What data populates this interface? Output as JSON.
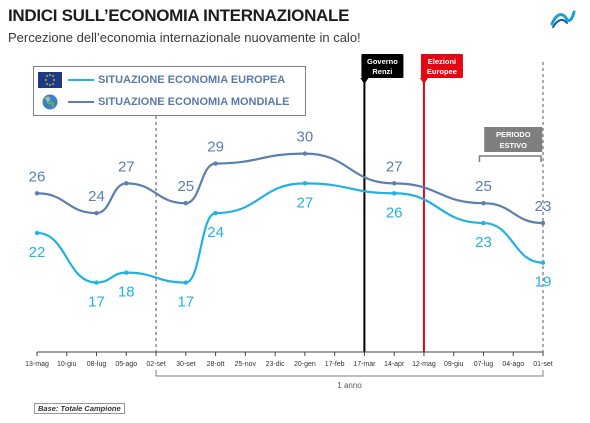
{
  "header": {
    "title": "INDICI SULL’ECONOMIA INTERNAZIONALE",
    "subtitle": "Percezione dell’economia internazionale nuovamente in calo!"
  },
  "legend": {
    "items": [
      {
        "label": "SITUAZIONE ECONOMIA EUROPEA",
        "color": "#21b2e2",
        "icon": "eu-flag-icon"
      },
      {
        "label": "SITUAZIONE ECONOMIA MONDIALE",
        "color": "#5b7fae",
        "icon": "globe-icon"
      }
    ]
  },
  "chart_data": {
    "type": "line",
    "x": [
      "13-mag",
      "10-giu",
      "08-lug",
      "05-ago",
      "02-set",
      "30-set",
      "28-ott",
      "25-nov",
      "23-dic",
      "20-gen",
      "17-feb",
      "17-mar",
      "14-apr",
      "12-mag",
      "09-giu",
      "07-lug",
      "04-ago",
      "01-set"
    ],
    "series": [
      {
        "name": "SITUAZIONE ECONOMIA EUROPEA",
        "color": "#21b2e2",
        "points": [
          {
            "x": "13-mag",
            "y": 22,
            "label": "22"
          },
          {
            "x": "08-lug",
            "y": 17,
            "label": "17"
          },
          {
            "x": "05-ago",
            "y": 18,
            "label": "18"
          },
          {
            "x": "30-set",
            "y": 17,
            "label": "17"
          },
          {
            "x": "28-ott",
            "y": 24,
            "label": "24"
          },
          {
            "x": "20-gen",
            "y": 27,
            "label": "27"
          },
          {
            "x": "14-apr",
            "y": 26,
            "label": "26"
          },
          {
            "x": "07-lug",
            "y": 23,
            "label": "23"
          },
          {
            "x": "01-set",
            "y": 19,
            "label": "19"
          }
        ]
      },
      {
        "name": "SITUAZIONE ECONOMIA MONDIALE",
        "color": "#5b7fae",
        "points": [
          {
            "x": "13-mag",
            "y": 26,
            "label": "26"
          },
          {
            "x": "08-lug",
            "y": 24,
            "label": "24"
          },
          {
            "x": "05-ago",
            "y": 27,
            "label": "27"
          },
          {
            "x": "30-set",
            "y": 25,
            "label": "25"
          },
          {
            "x": "28-ott",
            "y": 29,
            "label": "29"
          },
          {
            "x": "20-gen",
            "y": 30,
            "label": "30"
          },
          {
            "x": "14-apr",
            "y": 27,
            "label": "27"
          },
          {
            "x": "07-lug",
            "y": 25,
            "label": "25"
          },
          {
            "x": "01-set",
            "y": 23,
            "label": "23"
          }
        ]
      }
    ],
    "events": [
      {
        "x": "17-mar",
        "label": "Governo Renzi",
        "color": "#000000"
      },
      {
        "x": "12-mag",
        "label": "Elezioni Europee",
        "color": "#e30613"
      }
    ],
    "annotations": [
      {
        "label": "PERIODO ESTIVO"
      },
      {
        "label": "1 anno"
      }
    ],
    "ylim": [
      10,
      40
    ]
  },
  "footer": {
    "base": "Base: Totale Campione"
  }
}
